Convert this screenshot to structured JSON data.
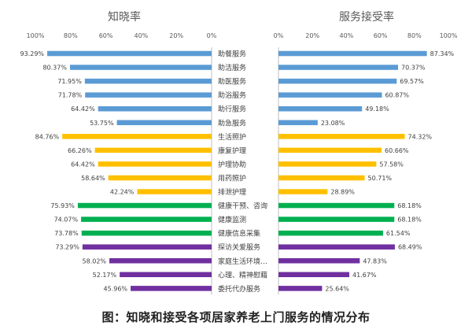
{
  "chart_data": {
    "type": "bar",
    "orientation": "horizontal",
    "layout": "butterfly",
    "categories": [
      "助餐服务",
      "助洁服务",
      "助医服务",
      "助浴服务",
      "助行服务",
      "助急服务",
      "生活照护",
      "康复护理",
      "护理协助",
      "用药照护",
      "排泄护理",
      "健康干预、咨询",
      "健康监测",
      "健康信息采集",
      "探访关爱服务",
      "家庭生活环境…",
      "心理、精神慰藉",
      "委托代办服务"
    ],
    "category_colors": [
      "#5b9bd5",
      "#5b9bd5",
      "#5b9bd5",
      "#5b9bd5",
      "#5b9bd5",
      "#5b9bd5",
      "#ffc000",
      "#ffc000",
      "#ffc000",
      "#ffc000",
      "#ffc000",
      "#00b050",
      "#00b050",
      "#00b050",
      "#7030a0",
      "#7030a0",
      "#7030a0",
      "#7030a0"
    ],
    "series": [
      {
        "name": "知晓率",
        "values": [
          93.29,
          80.37,
          71.95,
          71.78,
          64.42,
          53.75,
          84.76,
          66.26,
          64.42,
          58.64,
          42.24,
          75.93,
          74.07,
          73.78,
          73.29,
          58.02,
          52.17,
          45.96
        ],
        "labels": [
          "93.29%",
          "80.37%",
          "71.95%",
          "71.78%",
          "64.42%",
          "53.75%",
          "84.76%",
          "66.26%",
          "64.42%",
          "58.64%",
          "42.24%",
          "75.93%",
          "74.07%",
          "73.78%",
          "73.29%",
          "58.02%",
          "52.17%",
          "45.96%"
        ]
      },
      {
        "name": "服务接受率",
        "values": [
          87.34,
          70.37,
          69.57,
          60.87,
          49.18,
          23.08,
          74.32,
          60.66,
          57.58,
          50.71,
          28.89,
          68.18,
          68.18,
          61.54,
          68.49,
          47.83,
          41.67,
          25.64
        ],
        "labels": [
          "87.34%",
          "70.37%",
          "69.57%",
          "60.87%",
          "49.18%",
          "23.08%",
          "74.32%",
          "60.66%",
          "57.58%",
          "50.71%",
          "28.89%",
          "68.18%",
          "68.18%",
          "61.54%",
          "68.49%",
          "47.83%",
          "41.67%",
          "25.64%"
        ]
      }
    ],
    "left_ticks": [
      "100%",
      "80%",
      "60%",
      "40%",
      "20%",
      "0%"
    ],
    "right_ticks": [
      "0%",
      "20%",
      "40%",
      "60%",
      "80%",
      "100%"
    ],
    "xlim": [
      0,
      100
    ],
    "grid": false,
    "caption": "图：知晓和接受各项居家养老上门服务的情况分布"
  }
}
